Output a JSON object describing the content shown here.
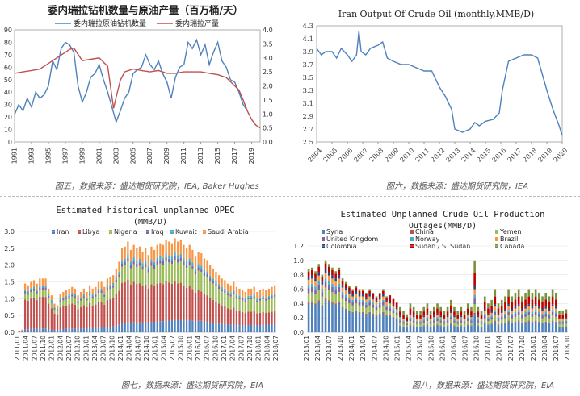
{
  "captions": [
    "图五，数据来源：盛达期货研究院，IEA, Baker Hughes",
    "图六，数据来源：盛达期货研究院，IEA",
    "图七，数据来源：盛达期货研究院，EIA",
    "图八，数据来源：盛达期货研究院，EIA"
  ],
  "colors": {
    "blue": "#4f81bd",
    "red": "#c0504d",
    "green": "#9bbb59",
    "purple": "#8064a2",
    "cyan": "#4bacc6",
    "orange": "#f79646",
    "darkblue": "#1f497d"
  },
  "chart_data": [
    {
      "id": "chart1",
      "type": "line",
      "title": "委内瑞拉钻机数量与原油产量（百万桶/天）",
      "x_ticks": [
        "1991",
        "1993",
        "1995",
        "1997",
        "1999",
        "2001",
        "2003",
        "2005",
        "2007",
        "2009",
        "2011",
        "2013",
        "2015",
        "2017",
        "2019"
      ],
      "xlim": [
        1991,
        2020
      ],
      "ylim_left": [
        0,
        90
      ],
      "yticks_left": [
        0,
        10,
        20,
        30,
        40,
        50,
        60,
        70,
        80,
        90
      ],
      "ylim_right": [
        0,
        4.0
      ],
      "yticks_right": [
        0.0,
        0.5,
        1.0,
        1.5,
        2.0,
        2.5,
        3.0,
        3.5,
        4.0
      ],
      "series": [
        {
          "name": "委内瑞拉原油钻机数量",
          "axis": "left",
          "color": "#4f81bd",
          "x": [
            1991,
            1991.5,
            1992,
            1992.5,
            1993,
            1993.5,
            1994,
            1994.5,
            1995,
            1995.5,
            1996,
            1996.5,
            1997,
            1997.5,
            1998,
            1998.5,
            1999,
            1999.5,
            2000,
            2000.5,
            2001,
            2001.5,
            2002,
            2002.5,
            2003,
            2003.5,
            2004,
            2004.5,
            2005,
            2005.5,
            2006,
            2006.5,
            2007,
            2007.5,
            2008,
            2008.5,
            2009,
            2009.5,
            2010,
            2010.5,
            2011,
            2011.5,
            2012,
            2012.5,
            2013,
            2013.5,
            2014,
            2014.5,
            2015,
            2015.5,
            2016,
            2016.5,
            2017,
            2017.5,
            2018,
            2018.5
          ],
          "y": [
            22,
            30,
            25,
            35,
            28,
            40,
            35,
            38,
            45,
            65,
            58,
            75,
            80,
            78,
            72,
            45,
            32,
            40,
            52,
            55,
            62,
            50,
            40,
            28,
            16,
            25,
            35,
            40,
            55,
            58,
            60,
            70,
            62,
            58,
            65,
            55,
            48,
            35,
            52,
            60,
            62,
            80,
            75,
            82,
            70,
            78,
            62,
            72,
            80,
            65,
            60,
            50,
            48,
            40,
            30,
            25
          ]
        },
        {
          "name": "委内瑞拉产量",
          "axis": "right",
          "color": "#c0504d",
          "x": [
            1991,
            1992,
            1993,
            1994,
            1995,
            1996,
            1997,
            1997.5,
            1998,
            1999,
            2000,
            2001,
            2002,
            2002.7,
            2003,
            2003.5,
            2004,
            2005,
            2006,
            2007,
            2008,
            2009,
            2010,
            2011,
            2012,
            2013,
            2014,
            2015,
            2016,
            2016.5,
            2017,
            2017.5,
            2018,
            2018.5,
            2019,
            2019.5,
            2020
          ],
          "y": [
            2.45,
            2.5,
            2.55,
            2.6,
            2.8,
            3.0,
            3.2,
            3.3,
            3.35,
            2.9,
            2.95,
            3.0,
            2.7,
            1.2,
            1.6,
            2.2,
            2.5,
            2.6,
            2.55,
            2.5,
            2.55,
            2.45,
            2.45,
            2.5,
            2.5,
            2.5,
            2.45,
            2.4,
            2.3,
            2.15,
            2.0,
            1.85,
            1.5,
            1.1,
            0.8,
            0.6,
            0.5
          ]
        }
      ]
    },
    {
      "id": "chart2",
      "type": "line",
      "title": "Iran  Output Of Crude Oil (monthly,MMB/D)",
      "x_ticks": [
        "2004",
        "2005",
        "2006",
        "2007",
        "2008",
        "2009",
        "2010",
        "2011",
        "2012",
        "2013",
        "2014",
        "2015",
        "2016",
        "2017",
        "2018",
        "2019",
        "2020"
      ],
      "xlim": [
        2004,
        2020
      ],
      "ylim": [
        2.5,
        4.3
      ],
      "yticks": [
        2.5,
        2.7,
        2.9,
        3.1,
        3.3,
        3.5,
        3.7,
        3.9,
        4.1,
        4.3
      ],
      "series": [
        {
          "name": "Iran",
          "color": "#4f81bd",
          "x": [
            2004,
            2004.3,
            2004.6,
            2005,
            2005.3,
            2005.6,
            2006,
            2006.3,
            2006.6,
            2006.75,
            2006.9,
            2007.2,
            2007.5,
            2008,
            2008.3,
            2008.6,
            2009,
            2009.5,
            2010,
            2010.5,
            2011,
            2011.5,
            2012,
            2012.4,
            2012.8,
            2013,
            2013.5,
            2014,
            2014.3,
            2014.6,
            2015,
            2015.5,
            2015.9,
            2016.1,
            2016.5,
            2017,
            2017.5,
            2018,
            2018.4,
            2018.7,
            2019,
            2019.4,
            2019.8,
            2020
          ],
          "y": [
            3.95,
            3.85,
            3.9,
            3.9,
            3.8,
            3.95,
            3.85,
            3.75,
            3.85,
            4.22,
            3.9,
            3.85,
            3.95,
            4.0,
            4.05,
            3.8,
            3.75,
            3.7,
            3.7,
            3.65,
            3.6,
            3.6,
            3.35,
            3.2,
            3.0,
            2.7,
            2.65,
            2.7,
            2.8,
            2.75,
            2.82,
            2.85,
            2.95,
            3.3,
            3.75,
            3.8,
            3.85,
            3.85,
            3.8,
            3.55,
            3.3,
            3.0,
            2.75,
            2.6
          ]
        }
      ]
    },
    {
      "id": "chart3",
      "type": "bar",
      "stacked": true,
      "title": "Estimated historical unplanned OPEC",
      "unit": "(MMB/D)",
      "ylim": [
        0,
        3.0
      ],
      "yticks": [
        0.0,
        0.5,
        1.0,
        1.5,
        2.0,
        2.5,
        3.0
      ],
      "x_ticks": [
        "2011/01",
        "2011/04",
        "2011/07",
        "2011/10",
        "2012/01",
        "2012/04",
        "2012/07",
        "2012/10",
        "2013/01",
        "2013/04",
        "2013/07",
        "2013/10",
        "2014/01",
        "2014/04",
        "2014/07",
        "2014/10",
        "2015/01",
        "2015/04",
        "2015/07",
        "2015/10",
        "2016/01",
        "2016/04",
        "2016/07",
        "2016/10",
        "2017/01",
        "2017/04",
        "2017/07",
        "2017/10",
        "2018/01",
        "2018/04",
        "2018/07"
      ],
      "series_names": [
        "Iran",
        "Libya",
        "Nigeria",
        "Iraq",
        "Kuwait",
        "Saudi Arabia"
      ],
      "series_colors": [
        "#4f81bd",
        "#c0504d",
        "#9bbb59",
        "#8064a2",
        "#4bacc6",
        "#f79646"
      ],
      "totals": [
        0.05,
        0.08,
        1.45,
        1.4,
        1.5,
        1.55,
        1.45,
        1.6,
        1.6,
        1.6,
        1.3,
        1.1,
        0.85,
        0.8,
        1.15,
        1.2,
        1.25,
        1.3,
        1.35,
        1.3,
        1.1,
        1.2,
        1.3,
        1.2,
        1.4,
        1.3,
        1.35,
        1.5,
        1.5,
        1.35,
        1.6,
        1.65,
        1.7,
        1.9,
        2.1,
        2.5,
        2.55,
        2.7,
        2.45,
        2.6,
        2.5,
        2.55,
        2.4,
        2.5,
        2.3,
        2.55,
        2.45,
        2.6,
        2.65,
        2.6,
        2.75,
        2.7,
        2.65,
        2.8,
        2.7,
        2.75,
        2.6,
        2.5,
        2.6,
        2.45,
        2.25,
        2.4,
        2.35,
        2.2,
        2.15,
        2.0,
        1.9,
        1.8,
        1.7,
        1.6,
        1.55,
        1.45,
        1.4,
        1.5,
        1.35,
        1.3,
        1.25,
        1.2,
        1.3,
        1.3,
        1.35,
        1.2,
        1.25,
        1.3,
        1.25,
        1.3,
        1.35,
        1.4
      ],
      "iran_share": 0.1
    },
    {
      "id": "chart4",
      "type": "bar",
      "stacked": true,
      "title": "Estimated Unplanned Crude Oil Production",
      "title2": "Outages(MMB/D)",
      "ylim": [
        0,
        1.2
      ],
      "yticks": [
        0.0,
        0.2,
        0.4,
        0.6,
        0.8,
        1.0,
        1.2
      ],
      "x_ticks": [
        "2013/01",
        "2013/04",
        "2013/07",
        "2013/10",
        "2014/01",
        "2014/04",
        "2014/07",
        "2014/10",
        "2015/01",
        "2015/04",
        "2015/07",
        "2015/10",
        "2016/01",
        "2016/04",
        "2016/07",
        "2016/10",
        "2017/01",
        "2017/04",
        "2017/07",
        "2017/10",
        "2018/01",
        "2018/04",
        "2018/07",
        "2018/10"
      ],
      "series_names": [
        "Syria",
        "China",
        "Yemen",
        "United Kingdom",
        "Norway",
        "Brazil",
        "Colombia",
        "Sudan / S. Sudan",
        "Canada"
      ],
      "series_colors": [
        "#4f81bd",
        "#c0504d",
        "#9bbb59",
        "#8064a2",
        "#4bacc6",
        "#f79646",
        "#1f497d",
        "#c00000",
        "#77933c"
      ],
      "totals": [
        0.88,
        0.9,
        0.85,
        0.95,
        0.8,
        1.0,
        0.95,
        0.9,
        0.85,
        0.9,
        0.75,
        0.7,
        0.65,
        0.6,
        0.65,
        0.6,
        0.6,
        0.55,
        0.6,
        0.55,
        0.5,
        0.55,
        0.6,
        0.5,
        0.5,
        0.45,
        0.4,
        0.35,
        0.3,
        0.25,
        0.4,
        0.35,
        0.3,
        0.3,
        0.35,
        0.4,
        0.3,
        0.35,
        0.4,
        0.35,
        0.3,
        0.35,
        0.45,
        0.35,
        0.3,
        0.35,
        0.3,
        0.4,
        0.35,
        1.0,
        0.35,
        0.3,
        0.5,
        0.4,
        0.45,
        0.6,
        0.4,
        0.45,
        0.5,
        0.6,
        0.5,
        0.55,
        0.6,
        0.5,
        0.55,
        0.6,
        0.55,
        0.6,
        0.55,
        0.5,
        0.55,
        0.5,
        0.6,
        0.55,
        0.3,
        0.3,
        0.32
      ]
    }
  ]
}
